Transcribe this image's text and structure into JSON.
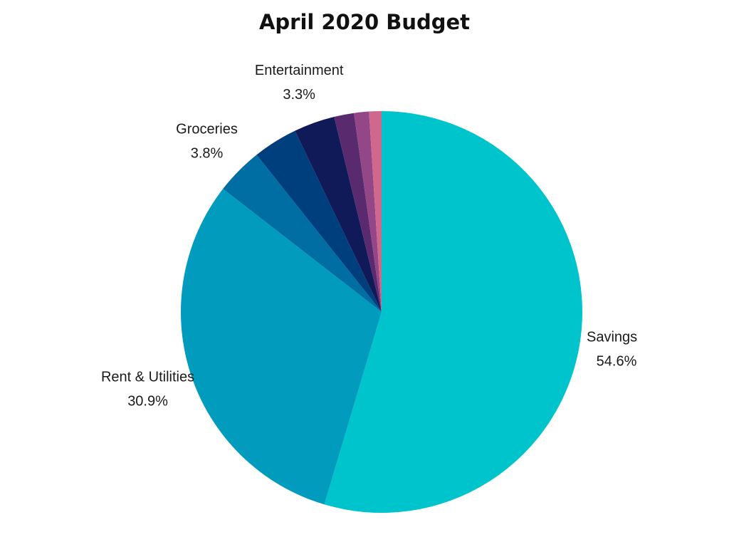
{
  "chart_data": {
    "type": "pie",
    "title": "April 2020 Budget",
    "start_angle_deg": 0,
    "direction": "clockwise",
    "slices": [
      {
        "label": "Savings",
        "value": 54.6,
        "value_label": "54.6%",
        "color": "#00c4cc",
        "show_label": true,
        "label_anchor": "start"
      },
      {
        "label": "Rent & Utilities",
        "value": 30.9,
        "value_label": "30.9%",
        "color": "#009bbd",
        "show_label": true,
        "label_anchor": "middle"
      },
      {
        "label": "Groceries",
        "value": 3.8,
        "value_label": "3.8%",
        "color": "#006ea3",
        "show_label": true,
        "label_anchor": "middle"
      },
      {
        "label": "",
        "value": 3.6,
        "value_label": "",
        "color": "#003f7e",
        "show_label": false
      },
      {
        "label": "Entertainment",
        "value": 3.3,
        "value_label": "3.3%",
        "color": "#111a58",
        "show_label": true,
        "label_anchor": "middle"
      },
      {
        "label": "",
        "value": 1.6,
        "value_label": "",
        "color": "#5a2a6e",
        "show_label": false
      },
      {
        "label": "",
        "value": 1.2,
        "value_label": "",
        "color": "#934786",
        "show_label": false
      },
      {
        "label": "",
        "value": 1.0,
        "value_label": "",
        "color": "#d0688e",
        "show_label": false
      }
    ]
  }
}
